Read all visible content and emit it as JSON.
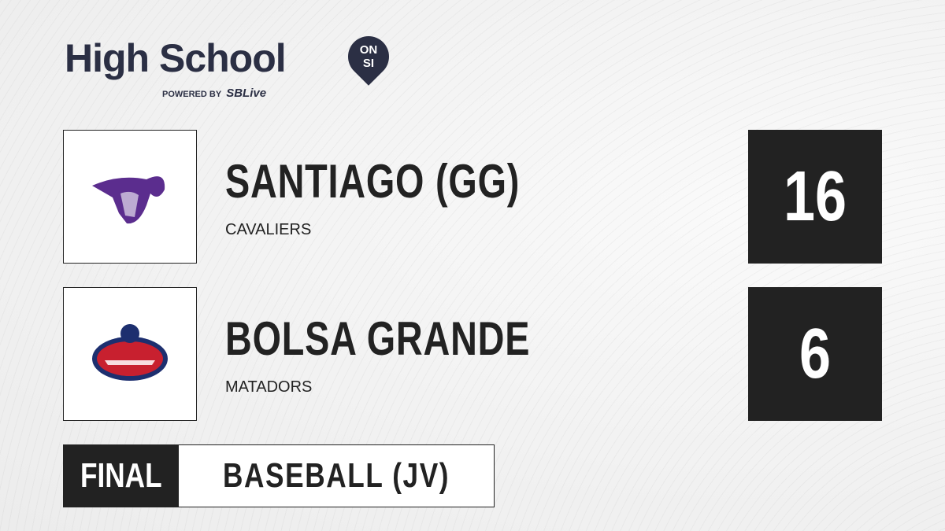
{
  "brand": {
    "title": "High School",
    "badge_top": "ON",
    "badge_bottom": "SI",
    "powered_by": "POWERED BY",
    "partner_a": "S",
    "partner_b": "SBLive"
  },
  "teams": [
    {
      "name": "SANTIAGO (GG)",
      "mascot": "CAVALIERS",
      "score": "16",
      "logo_color": "#5b2d8e"
    },
    {
      "name": "BOLSA GRANDE",
      "mascot": "MATADORS",
      "score": "6",
      "logo_color": "#c8202f"
    }
  ],
  "status": "FINAL",
  "sport": "BASEBALL (JV)"
}
